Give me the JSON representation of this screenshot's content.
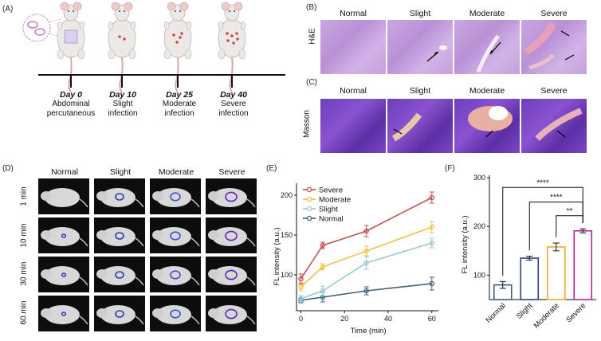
{
  "panels": {
    "A": "(A)",
    "B": "(B)",
    "C": "(C)",
    "D": "(D)",
    "E": "(E)",
    "F": "(F)"
  },
  "panel_a": {
    "timeline": [
      {
        "day_word": "Day",
        "day_num": "0",
        "desc": "Abdominal\npercutaneous"
      },
      {
        "day_word": "Day",
        "day_num": "10",
        "desc": "Slight\ninfection"
      },
      {
        "day_word": "Day",
        "day_num": "25",
        "desc": "Moderate\ninfection"
      },
      {
        "day_word": "Day",
        "day_num": "40",
        "desc": "Severe\ninfection"
      }
    ]
  },
  "panel_b": {
    "row_label": "H&E",
    "columns": [
      "Normal",
      "Slight",
      "Moderate",
      "Severe"
    ]
  },
  "panel_c": {
    "row_label": "Masson",
    "columns": [
      "Normal",
      "Slight",
      "Moderate",
      "Severe"
    ]
  },
  "panel_d": {
    "columns": [
      "Normal",
      "Slight",
      "Moderate",
      "Severe"
    ],
    "rows": [
      "1 min",
      "10 min",
      "30 min",
      "60 min"
    ]
  },
  "chart_data": [
    {
      "panel": "E",
      "type": "line",
      "x": [
        0,
        10,
        30,
        60
      ],
      "xlabel": "Time (min)",
      "ylabel": "FL intensity (a.u.)",
      "xticks": [
        0,
        20,
        40,
        60
      ],
      "yticks": [
        100,
        150,
        200
      ],
      "xlim": [
        -2,
        63
      ],
      "ylim": [
        55,
        215
      ],
      "legend_position": "top-left",
      "series": [
        {
          "name": "Severe",
          "color": "#c0504d",
          "values": [
            95,
            137,
            155,
            197
          ],
          "errors": [
            6,
            4,
            7,
            7
          ]
        },
        {
          "name": "Moderate",
          "color": "#f2c14e",
          "values": [
            85,
            110,
            130,
            160
          ],
          "errors": [
            5,
            4,
            6,
            7
          ]
        },
        {
          "name": "Slight",
          "color": "#9cc9cf",
          "values": [
            70,
            80,
            115,
            140
          ],
          "errors": [
            4,
            6,
            8,
            6
          ]
        },
        {
          "name": "Normal",
          "color": "#3f6178",
          "values": [
            68,
            72,
            80,
            89
          ],
          "errors": [
            3,
            6,
            5,
            8
          ]
        }
      ]
    },
    {
      "panel": "F",
      "type": "bar",
      "categories": [
        "Normal",
        "Slight",
        "Moderate",
        "Severe"
      ],
      "values": [
        80,
        135,
        158,
        191
      ],
      "errors": [
        7,
        4,
        8,
        4
      ],
      "colors": [
        "#3f6178",
        "#2e3f8f",
        "#f2a72e",
        "#b0249a"
      ],
      "ylabel": "FL intensity (a.u.)",
      "ylim": [
        50,
        305
      ],
      "yticks": [
        100,
        200,
        300
      ],
      "significance": [
        {
          "from": "Normal",
          "to": "Severe",
          "label": "****"
        },
        {
          "from": "Slight",
          "to": "Severe",
          "label": "****"
        },
        {
          "from": "Moderate",
          "to": "Severe",
          "label": "**"
        }
      ]
    }
  ]
}
